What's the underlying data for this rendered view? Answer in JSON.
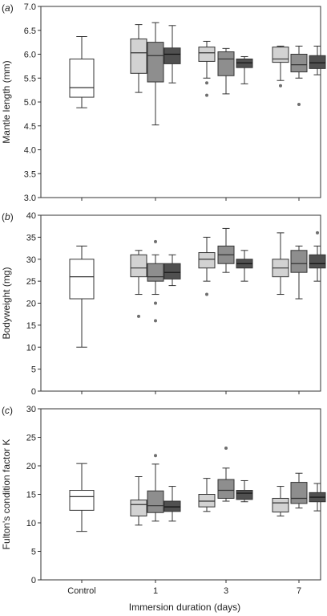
{
  "figure": {
    "xlabel": "Immersion duration (days)",
    "categories": [
      "Control",
      "1",
      "3",
      "7"
    ]
  },
  "colors": {
    "control": "#ffffff",
    "light": "#d2d2d2",
    "mid": "#8e8e8e",
    "dark": "#505050",
    "stroke": "#333333"
  },
  "chart_data": [
    {
      "type": "box",
      "panel_label": "a",
      "ylabel": "Mantle length (mm)",
      "ylim": [
        3.0,
        7.0
      ],
      "yticks": [
        "3.0",
        "3.5",
        "4.0",
        "4.5",
        "5.0",
        "5.5",
        "6.0",
        "6.5",
        "7.0"
      ],
      "boxes": [
        {
          "group": "Control",
          "shade": "control",
          "whisker_low": 4.88,
          "q1": 5.1,
          "median": 5.3,
          "q3": 5.9,
          "whisker_high": 6.37,
          "outliers": []
        },
        {
          "group": "1",
          "shade": "light",
          "whisker_low": 5.2,
          "q1": 5.6,
          "median": 6.03,
          "q3": 6.32,
          "whisker_high": 6.62,
          "outliers": []
        },
        {
          "group": "1",
          "shade": "mid",
          "whisker_low": 4.52,
          "q1": 5.42,
          "median": 5.97,
          "q3": 6.25,
          "whisker_high": 6.66,
          "outliers": []
        },
        {
          "group": "1",
          "shade": "dark",
          "whisker_low": 5.4,
          "q1": 5.8,
          "median": 6.0,
          "q3": 6.13,
          "whisker_high": 6.6,
          "outliers": []
        },
        {
          "group": "3",
          "shade": "light",
          "whisker_low": 5.5,
          "q1": 5.85,
          "median": 6.03,
          "q3": 6.15,
          "whisker_high": 6.27,
          "outliers": [
            5.4,
            5.14
          ]
        },
        {
          "group": "3",
          "shade": "mid",
          "whisker_low": 5.17,
          "q1": 5.55,
          "median": 5.9,
          "q3": 6.05,
          "whisker_high": 6.12,
          "outliers": []
        },
        {
          "group": "3",
          "shade": "dark",
          "whisker_low": 5.38,
          "q1": 5.72,
          "median": 5.82,
          "q3": 5.9,
          "whisker_high": 5.95,
          "outliers": []
        },
        {
          "group": "7",
          "shade": "light",
          "whisker_low": 5.45,
          "q1": 5.83,
          "median": 5.9,
          "q3": 6.15,
          "whisker_high": 6.17,
          "outliers": [
            5.34
          ]
        },
        {
          "group": "7",
          "shade": "mid",
          "whisker_low": 5.5,
          "q1": 5.63,
          "median": 5.78,
          "q3": 6.0,
          "whisker_high": 6.17,
          "outliers": [
            4.95
          ]
        },
        {
          "group": "7",
          "shade": "dark",
          "whisker_low": 5.57,
          "q1": 5.7,
          "median": 5.82,
          "q3": 5.97,
          "whisker_high": 6.17,
          "outliers": []
        }
      ]
    },
    {
      "type": "box",
      "panel_label": "b",
      "ylabel": "Bodyweight (mg)",
      "ylim": [
        0,
        40
      ],
      "yticks": [
        "0",
        "5",
        "10",
        "15",
        "20",
        "25",
        "30",
        "35",
        "40"
      ],
      "boxes": [
        {
          "group": "Control",
          "shade": "control",
          "whisker_low": 10,
          "q1": 21,
          "median": 26,
          "q3": 30,
          "whisker_high": 33,
          "outliers": []
        },
        {
          "group": "1",
          "shade": "light",
          "whisker_low": 22,
          "q1": 26,
          "median": 28,
          "q3": 31,
          "whisker_high": 32,
          "outliers": [
            17
          ]
        },
        {
          "group": "1",
          "shade": "mid",
          "whisker_low": 22,
          "q1": 25,
          "median": 26,
          "q3": 29,
          "whisker_high": 31,
          "outliers": [
            34,
            20,
            16
          ]
        },
        {
          "group": "1",
          "shade": "dark",
          "whisker_low": 24,
          "q1": 25.5,
          "median": 27,
          "q3": 29,
          "whisker_high": 31,
          "outliers": []
        },
        {
          "group": "3",
          "shade": "light",
          "whisker_low": 25,
          "q1": 28,
          "median": 30,
          "q3": 31.5,
          "whisker_high": 35,
          "outliers": [
            22
          ]
        },
        {
          "group": "3",
          "shade": "mid",
          "whisker_low": 27,
          "q1": 29,
          "median": 31,
          "q3": 33,
          "whisker_high": 37,
          "outliers": []
        },
        {
          "group": "3",
          "shade": "dark",
          "whisker_low": 25,
          "q1": 28,
          "median": 29,
          "q3": 30,
          "whisker_high": 32,
          "outliers": []
        },
        {
          "group": "7",
          "shade": "light",
          "whisker_low": 22,
          "q1": 26,
          "median": 28,
          "q3": 30,
          "whisker_high": 36,
          "outliers": []
        },
        {
          "group": "7",
          "shade": "mid",
          "whisker_low": 21,
          "q1": 27,
          "median": 29,
          "q3": 32,
          "whisker_high": 33,
          "outliers": []
        },
        {
          "group": "7",
          "shade": "dark",
          "whisker_low": 25,
          "q1": 28,
          "median": 29,
          "q3": 31,
          "whisker_high": 33,
          "outliers": [
            36
          ]
        }
      ]
    },
    {
      "type": "box",
      "panel_label": "c",
      "ylabel": "Fulton's condition factor K",
      "ylim": [
        0,
        30
      ],
      "yticks": [
        "0",
        "5",
        "10",
        "15",
        "20",
        "25",
        "30"
      ],
      "boxes": [
        {
          "group": "Control",
          "shade": "control",
          "whisker_low": 8.5,
          "q1": 12.2,
          "median": 14.6,
          "q3": 15.7,
          "whisker_high": 20.4,
          "outliers": []
        },
        {
          "group": "1",
          "shade": "light",
          "whisker_low": 9.6,
          "q1": 11.2,
          "median": 13.2,
          "q3": 14.0,
          "whisker_high": 18.1,
          "outliers": []
        },
        {
          "group": "1",
          "shade": "mid",
          "whisker_low": 10.3,
          "q1": 11.8,
          "median": 13.0,
          "q3": 15.6,
          "whisker_high": 20.3,
          "outliers": [
            21.8
          ]
        },
        {
          "group": "1",
          "shade": "dark",
          "whisker_low": 10.3,
          "q1": 12.0,
          "median": 12.8,
          "q3": 13.8,
          "whisker_high": 16.4,
          "outliers": []
        },
        {
          "group": "3",
          "shade": "light",
          "whisker_low": 12.0,
          "q1": 12.8,
          "median": 13.8,
          "q3": 15.0,
          "whisker_high": 17.8,
          "outliers": []
        },
        {
          "group": "3",
          "shade": "mid",
          "whisker_low": 13.8,
          "q1": 14.3,
          "median": 15.7,
          "q3": 17.6,
          "whisker_high": 19.6,
          "outliers": [
            23.1
          ]
        },
        {
          "group": "3",
          "shade": "dark",
          "whisker_low": 13.7,
          "q1": 14.1,
          "median": 15.2,
          "q3": 15.7,
          "whisker_high": 17.4,
          "outliers": []
        },
        {
          "group": "7",
          "shade": "light",
          "whisker_low": 11.2,
          "q1": 11.9,
          "median": 13.5,
          "q3": 14.3,
          "whisker_high": 16.4,
          "outliers": []
        },
        {
          "group": "7",
          "shade": "mid",
          "whisker_low": 12.6,
          "q1": 13.4,
          "median": 14.3,
          "q3": 17.1,
          "whisker_high": 18.7,
          "outliers": []
        },
        {
          "group": "7",
          "shade": "dark",
          "whisker_low": 12.1,
          "q1": 13.7,
          "median": 14.5,
          "q3": 15.3,
          "whisker_high": 16.9,
          "outliers": []
        }
      ]
    }
  ]
}
